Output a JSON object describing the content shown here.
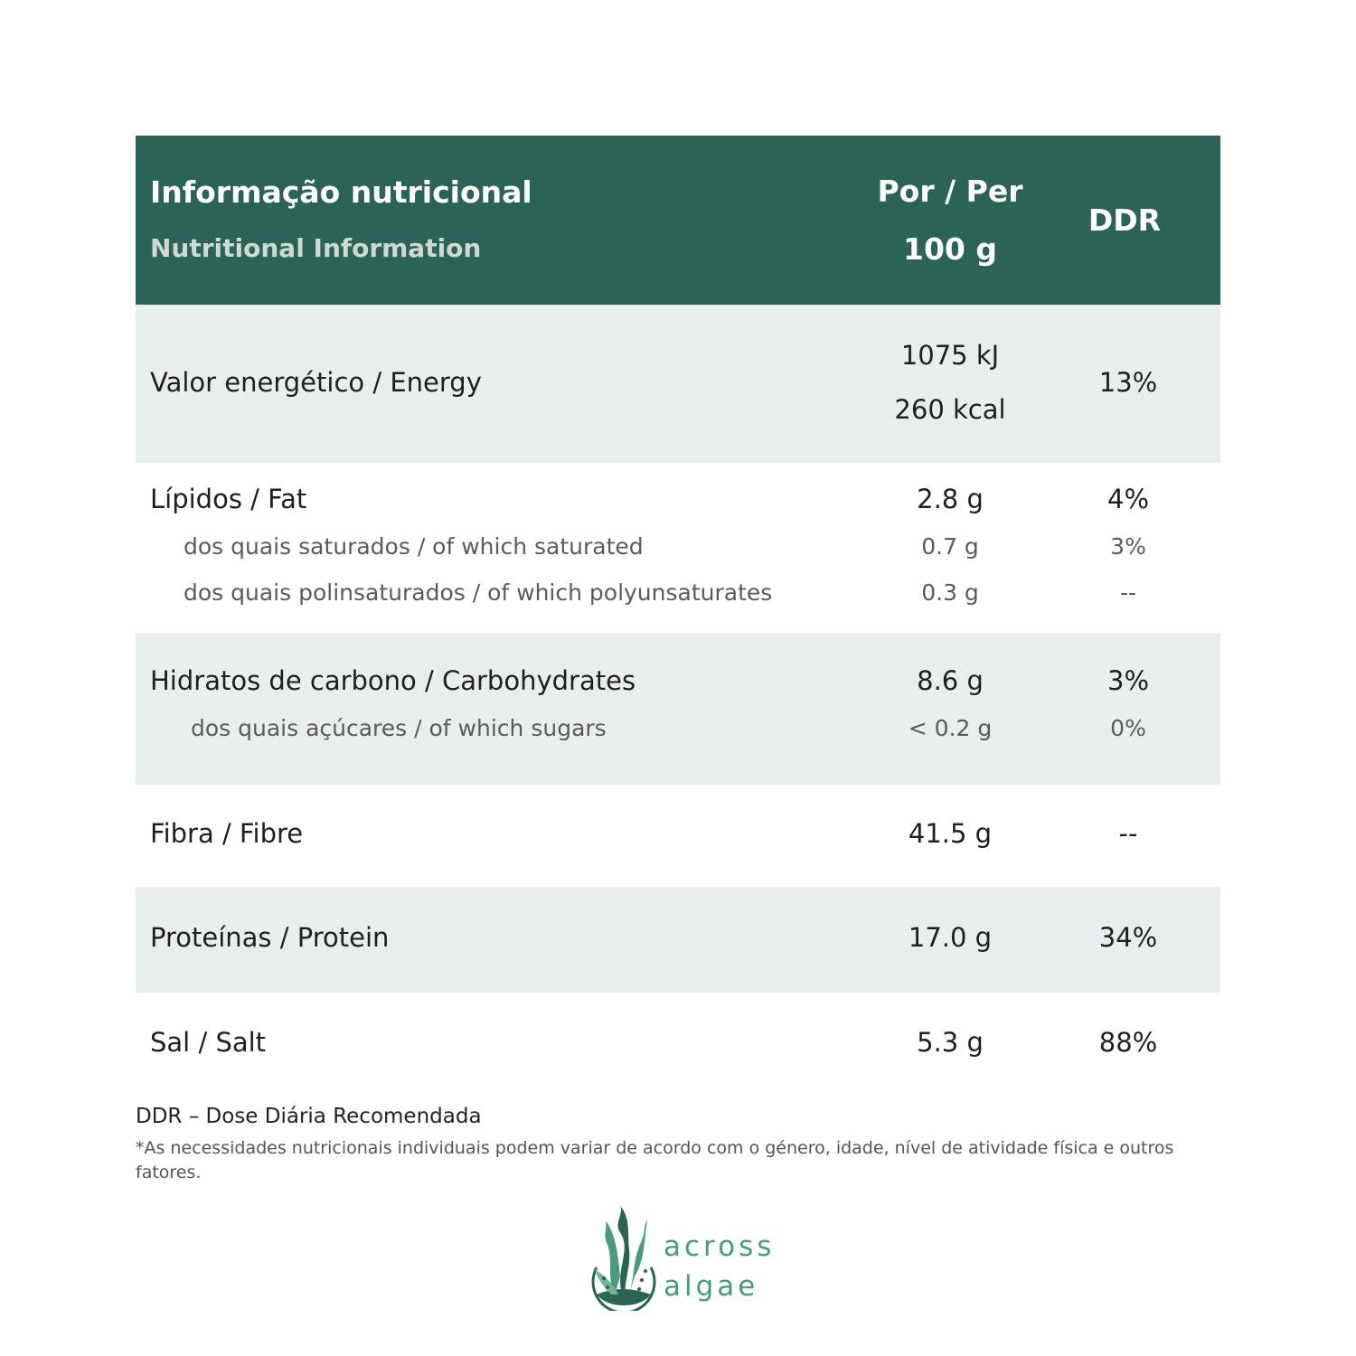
{
  "header": {
    "title_pt": "Informação nutricional",
    "title_en": "Nutritional Information",
    "per_line1": "Por / Per",
    "per_line2": "100 g",
    "ddr": "DDR"
  },
  "rows": {
    "energy": {
      "label": "Valor energético / Energy",
      "value_kj": "1075 kJ",
      "value_kcal": "260 kcal",
      "ddr": "13%"
    },
    "fat": {
      "label": "Lípidos / Fat",
      "value": "2.8 g",
      "ddr": "4%"
    },
    "saturated": {
      "label": "dos quais saturados / of which saturated",
      "value": "0.7 g",
      "ddr": "3%"
    },
    "polyunsat": {
      "label": "dos quais polinsaturados / of which polyunsaturates",
      "value": "0.3 g",
      "ddr": "--"
    },
    "carbs": {
      "label": "Hidratos de carbono / Carbohydrates",
      "value": "8.6 g",
      "ddr": "3%"
    },
    "sugars": {
      "label": "dos quais açúcares / of which sugars",
      "value": "< 0.2 g",
      "ddr": "0%"
    },
    "fibre": {
      "label": "Fibra / Fibre",
      "value": "41.5 g",
      "ddr": "--"
    },
    "protein": {
      "label": "Proteínas / Protein",
      "value": "17.0 g",
      "ddr": "34%"
    },
    "salt": {
      "label": "Sal / Salt",
      "value": "5.3 g",
      "ddr": "88%"
    }
  },
  "footer": {
    "ddr_note": "DDR – Dose Diária Recomendada",
    "disclaimer": "*As necessidades nutricionais individuais podem variar de acordo com o género, idade, nível de atividade física e outros fatores."
  },
  "logo": {
    "line1": "across",
    "line2": "algae"
  },
  "colors": {
    "header": "#2b6356",
    "band": "#e8eeed",
    "brand": "#4a9a7e"
  }
}
